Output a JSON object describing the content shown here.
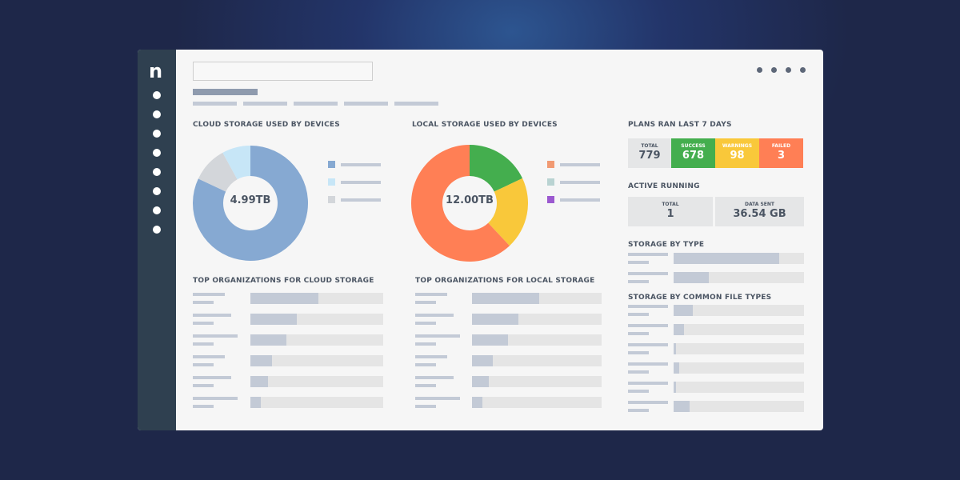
{
  "sidebar": {
    "logo": "n",
    "items": 8
  },
  "header": {
    "search_value": "",
    "menu_dots": 4
  },
  "cloud": {
    "title": "CLOUD STORAGE USED BY DEVICES",
    "center": "4.99TB",
    "slices": [
      {
        "value": 82,
        "color": "#86a9d2"
      },
      {
        "value": 10,
        "color": "#d3d6da"
      },
      {
        "value": 8,
        "color": "#c7e6f7"
      }
    ],
    "legend_colors": [
      "#86a9d2",
      "#c7e6f7",
      "#d3d6da"
    ]
  },
  "local": {
    "title": "LOCAL STORAGE USED BY DEVICES",
    "center": "12.00TB",
    "slices": [
      {
        "value": 18,
        "color": "#44ae4e"
      },
      {
        "value": 20,
        "color": "#f9c83a"
      },
      {
        "value": 62,
        "color": "#ff7f55"
      }
    ],
    "legend_colors": [
      "#f19a73",
      "#b9d3d2",
      "#9b59d0"
    ]
  },
  "top_cloud": {
    "title": "TOP ORGANIZATIONS FOR CLOUD STORAGE",
    "bars": [
      0.51,
      0.35,
      0.27,
      0.16,
      0.13,
      0.08
    ]
  },
  "top_local": {
    "title": "TOP ORGANIZATIONS FOR LOCAL STORAGE",
    "bars": [
      0.52,
      0.36,
      0.28,
      0.16,
      0.13,
      0.08
    ]
  },
  "plans": {
    "title": "PLANS RAN LAST 7 DAYS",
    "cells": [
      {
        "label": "TOTAL",
        "value": "779",
        "bg": "#e5e6e7",
        "fg": "#4b5563"
      },
      {
        "label": "SUCCESS",
        "value": "678",
        "bg": "#44ae4e",
        "fg": "#ffffff"
      },
      {
        "label": "WARNINGS",
        "value": "98",
        "bg": "#f9c83a",
        "fg": "#ffffff"
      },
      {
        "label": "FAILED",
        "value": "3",
        "bg": "#ff7f55",
        "fg": "#ffffff"
      }
    ]
  },
  "active": {
    "title": "ACTIVE RUNNING",
    "total_label": "TOTAL",
    "total_value": "1",
    "sent_label": "DATA SENT",
    "sent_value": "36.54 GB"
  },
  "by_type": {
    "title": "STORAGE BY TYPE",
    "bars": [
      0.81,
      0.27
    ]
  },
  "file_types": {
    "title": "STORAGE BY COMMON FILE TYPES",
    "bars": [
      0.15,
      0.08,
      0.02,
      0.04,
      0.02,
      0.12
    ]
  }
}
